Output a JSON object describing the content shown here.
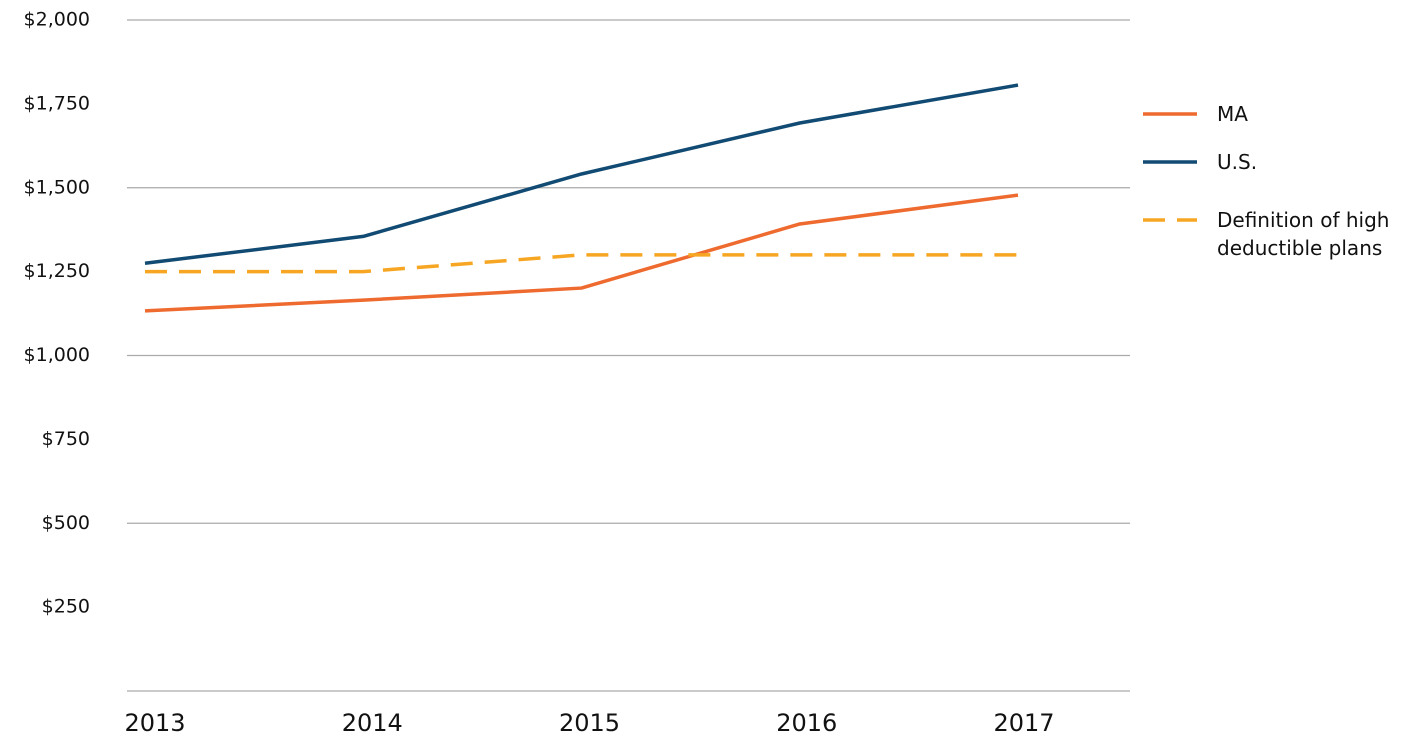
{
  "chart_data": {
    "type": "line",
    "categories": [
      "2013",
      "2014",
      "2015",
      "2016",
      "2017"
    ],
    "series": [
      {
        "name": "MA",
        "color": "#ee6a2f",
        "values": [
          1133,
          1165,
          1201,
          1392,
          1478
        ]
      },
      {
        "name": "U.S.",
        "color": "#114a72",
        "values": [
          1275,
          1355,
          1541,
          1693,
          1806
        ]
      },
      {
        "name": "Definition of high deductible plans",
        "color": "#f6a623",
        "dashed": true,
        "values": [
          1250,
          1250,
          1300,
          1300,
          1300
        ]
      }
    ],
    "ylim": [
      0,
      2000
    ],
    "yticks": [
      {
        "value": 250,
        "label": "$250"
      },
      {
        "value": 500,
        "label": "$500"
      },
      {
        "value": 750,
        "label": "$750"
      },
      {
        "value": 1000,
        "label": "$1,000"
      },
      {
        "value": 1250,
        "label": "$1,250"
      },
      {
        "value": 1500,
        "label": "$1,500"
      },
      {
        "value": 1750,
        "label": "$1,750"
      },
      {
        "value": 2000,
        "label": "$2,000"
      }
    ],
    "grid": true,
    "legend": "right"
  }
}
